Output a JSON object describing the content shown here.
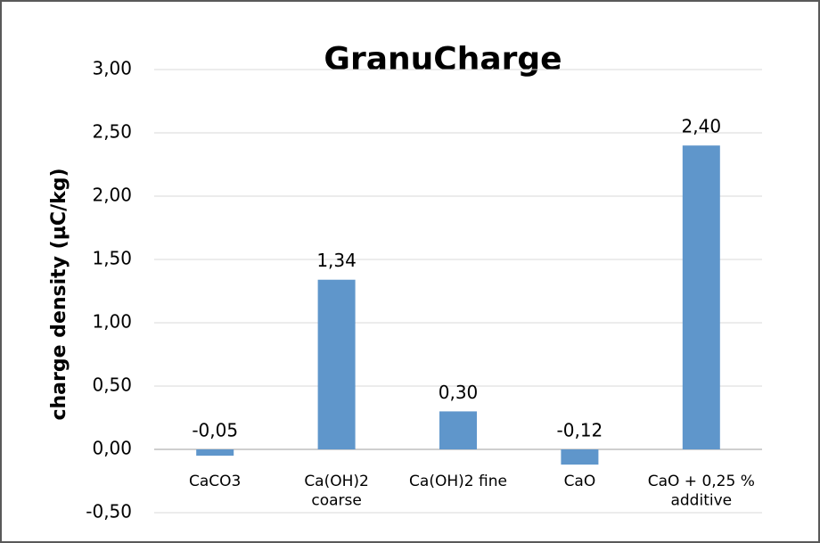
{
  "chart_data": {
    "type": "bar",
    "title": "GranuCharge",
    "y_label": "charge density (µC/kg)",
    "categories": [
      "CaCO3",
      "Ca(OH)2\ncoarse",
      "Ca(OH)2 fine",
      "CaO",
      "CaO + 0,25 %\nadditive"
    ],
    "values": [
      -0.05,
      1.34,
      0.3,
      -0.12,
      2.4
    ],
    "value_labels": [
      "-0,05",
      "1,34",
      "0,30",
      "-0,12",
      "2,40"
    ],
    "color": "#5f96cb",
    "ylim": [
      -0.5,
      3.0
    ],
    "yticks": [
      {
        "value": -0.5,
        "label": "-0,50"
      },
      {
        "value": 0,
        "label": "0,00"
      },
      {
        "value": 0.5,
        "label": "0,50"
      },
      {
        "value": 1,
        "label": "1,00"
      },
      {
        "value": 1.5,
        "label": "1,50"
      },
      {
        "value": 2,
        "label": "2,00"
      },
      {
        "value": 2.5,
        "label": "2,50"
      },
      {
        "value": 3,
        "label": "3,00"
      }
    ],
    "grid": true
  }
}
